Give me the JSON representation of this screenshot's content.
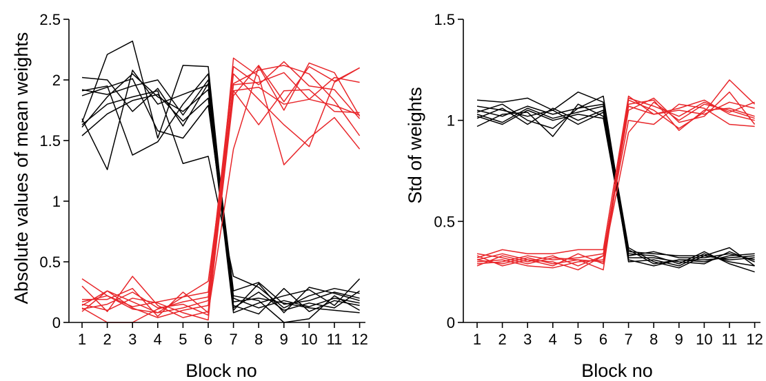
{
  "chart_data": [
    {
      "type": "line",
      "xlabel": "Block no",
      "ylabel": "Absolute values of mean weights",
      "x": [
        1,
        2,
        3,
        4,
        5,
        6,
        7,
        8,
        9,
        10,
        11,
        12
      ],
      "x_tick_labels": [
        "1",
        "2",
        "3",
        "4",
        "5",
        "6",
        "7",
        "8",
        "9",
        "10",
        "11",
        "12"
      ],
      "ylim": [
        0,
        2.5
      ],
      "y_ticks": [
        0,
        0.5,
        1,
        1.5,
        2,
        2.5
      ],
      "y_tick_labels": [
        "0",
        "0.5",
        "1",
        "1.5",
        "2",
        "2.5"
      ],
      "grid": false,
      "colors": {
        "high_then_low": "#000000",
        "low_then_high": "#e8262a"
      },
      "series": [
        {
          "color": "#000000",
          "values": [
            2.02,
            2.0,
            1.74,
            1.93,
            1.62,
            1.97,
            0.2,
            0.12,
            0.18,
            0.13,
            0.2,
            0.16
          ]
        },
        {
          "color": "#000000",
          "values": [
            1.65,
            2.21,
            2.32,
            1.52,
            2.12,
            2.11,
            0.12,
            0.25,
            0.1,
            0.16,
            0.12,
            0.26
          ]
        },
        {
          "color": "#000000",
          "values": [
            1.54,
            1.72,
            1.83,
            1.88,
            1.66,
            1.85,
            0.08,
            0.16,
            0.22,
            0.27,
            0.14,
            0.36
          ]
        },
        {
          "color": "#000000",
          "values": [
            1.68,
            1.26,
            2.08,
            1.8,
            1.88,
            1.96,
            0.26,
            0.33,
            0.15,
            0.18,
            0.25,
            0.2
          ]
        },
        {
          "color": "#000000",
          "values": [
            1.91,
            1.95,
            1.38,
            1.49,
            1.8,
            2.05,
            0.14,
            0.07,
            0.28,
            0.09,
            0.18,
            0.14
          ]
        },
        {
          "color": "#000000",
          "values": [
            1.87,
            1.94,
            2.01,
            1.58,
            1.52,
            1.79,
            0.22,
            0.18,
            0.0,
            0.03,
            0.22,
            0.1
          ]
        },
        {
          "color": "#000000",
          "values": [
            1.63,
            1.8,
            1.86,
            1.91,
            1.31,
            1.37,
            0.38,
            0.29,
            0.12,
            0.22,
            0.28,
            0.24
          ]
        },
        {
          "color": "#000000",
          "values": [
            1.92,
            1.88,
            1.95,
            2.0,
            1.71,
            2.0,
            0.17,
            0.2,
            0.16,
            0.12,
            0.1,
            0.08
          ]
        },
        {
          "color": "#000000",
          "values": [
            1.61,
            1.86,
            2.05,
            1.86,
            1.74,
            1.92,
            0.1,
            0.32,
            0.08,
            0.29,
            0.24,
            0.18
          ]
        },
        {
          "color": "#e8262a",
          "values": [
            0.36,
            0.22,
            0.11,
            0.08,
            0.21,
            0.34,
            1.91,
            1.94,
            1.8,
            1.84,
            1.79,
            1.71
          ]
        },
        {
          "color": "#e8262a",
          "values": [
            0.15,
            0.1,
            0.2,
            0.16,
            0.08,
            0.02,
            2.18,
            2.03,
            1.3,
            1.52,
            1.69,
            1.43
          ]
        },
        {
          "color": "#e8262a",
          "values": [
            0.19,
            0.19,
            0.28,
            0.05,
            0.25,
            0.08,
            1.43,
            2.11,
            1.75,
            2.14,
            2.06,
            1.7
          ]
        },
        {
          "color": "#e8262a",
          "values": [
            0.12,
            0.0,
            0.0,
            0.11,
            0.17,
            0.21,
            2.05,
            1.84,
            1.63,
            1.45,
            1.98,
            2.1
          ]
        },
        {
          "color": "#e8262a",
          "values": [
            0.3,
            0.09,
            0.38,
            0.14,
            0.04,
            0.09,
            1.91,
            1.63,
            1.91,
            1.92,
            1.74,
            1.73
          ]
        },
        {
          "color": "#e8262a",
          "values": [
            0.09,
            0.26,
            0.12,
            0.04,
            0.1,
            0.14,
            1.97,
            2.08,
            2.12,
            2.05,
            1.83,
            1.54
          ]
        },
        {
          "color": "#e8262a",
          "values": [
            0.17,
            0.22,
            0.13,
            0.17,
            0.21,
            0.25,
            2.11,
            1.96,
            2.15,
            1.95,
            1.92,
            1.68
          ]
        },
        {
          "color": "#e8262a",
          "values": [
            0.11,
            0.15,
            0.25,
            0.12,
            0.15,
            0.06,
            1.87,
            2.12,
            1.82,
            2.11,
            1.99,
            2.1
          ]
        },
        {
          "color": "#e8262a",
          "values": [
            0.14,
            0.26,
            0.17,
            0.08,
            0.12,
            0.18,
            1.96,
            1.98,
            2.06,
            1.84,
            2.02,
            1.98
          ]
        }
      ]
    },
    {
      "type": "line",
      "xlabel": "Block no",
      "ylabel": "Std of weights",
      "x": [
        1,
        2,
        3,
        4,
        5,
        6,
        7,
        8,
        9,
        10,
        11,
        12
      ],
      "x_tick_labels": [
        "1",
        "2",
        "3",
        "4",
        "5",
        "6",
        "7",
        "8",
        "9",
        "10",
        "11",
        "12"
      ],
      "ylim": [
        0,
        1.5
      ],
      "y_ticks": [
        0,
        0.5,
        1,
        1.5
      ],
      "y_tick_labels": [
        "0",
        "0.5",
        "1",
        "1.5"
      ],
      "grid": false,
      "colors": {
        "high_then_low": "#000000",
        "low_then_high": "#e8262a"
      },
      "series": [
        {
          "color": "#000000",
          "values": [
            1.1,
            1.09,
            1.11,
            1.05,
            1.14,
            1.09,
            0.37,
            0.3,
            0.27,
            0.33,
            0.37,
            0.28
          ]
        },
        {
          "color": "#000000",
          "values": [
            1.05,
            1.02,
            1.07,
            1.03,
            1.06,
            1.12,
            0.34,
            0.33,
            0.29,
            0.35,
            0.29,
            0.25
          ]
        },
        {
          "color": "#000000",
          "values": [
            1.01,
            1.06,
            0.98,
            1.06,
            1.0,
            1.05,
            0.31,
            0.28,
            0.31,
            0.3,
            0.33,
            0.34
          ]
        },
        {
          "color": "#000000",
          "values": [
            0.97,
            1.03,
            1.04,
            0.92,
            1.08,
            1.02,
            0.33,
            0.35,
            0.32,
            0.32,
            0.34,
            0.31
          ]
        },
        {
          "color": "#000000",
          "values": [
            1.03,
            0.99,
            1.06,
            1.01,
            1.04,
            1.07,
            0.3,
            0.31,
            0.28,
            0.34,
            0.3,
            0.28
          ]
        },
        {
          "color": "#000000",
          "values": [
            1.07,
            1.05,
            1.02,
            1.05,
            0.98,
            1.04,
            0.36,
            0.29,
            0.31,
            0.31,
            0.32,
            0.33
          ]
        },
        {
          "color": "#000000",
          "values": [
            1.02,
            0.98,
            1.05,
            1.0,
            1.03,
            1.01,
            0.32,
            0.32,
            0.3,
            0.29,
            0.35,
            0.3
          ]
        },
        {
          "color": "#000000",
          "values": [
            1.04,
            1.08,
            1.0,
            0.96,
            1.06,
            1.08,
            0.35,
            0.34,
            0.33,
            0.33,
            0.31,
            0.32
          ]
        },
        {
          "color": "#e8262a",
          "values": [
            0.31,
            0.29,
            0.32,
            0.29,
            0.31,
            0.26,
            1.1,
            1.05,
            0.96,
            1.04,
            1.2,
            1.08
          ]
        },
        {
          "color": "#e8262a",
          "values": [
            0.28,
            0.33,
            0.3,
            0.33,
            0.28,
            0.33,
            1.05,
            1.11,
            0.99,
            1.02,
            1.14,
            0.98
          ]
        },
        {
          "color": "#e8262a",
          "values": [
            0.32,
            0.36,
            0.34,
            0.34,
            0.36,
            0.36,
            1.12,
            1.03,
            1.06,
            1.1,
            1.03,
            1.0
          ]
        },
        {
          "color": "#e8262a",
          "values": [
            0.3,
            0.31,
            0.28,
            0.27,
            0.3,
            0.31,
            0.94,
            1.09,
            1.0,
            1.08,
            1.05,
            1.01
          ]
        },
        {
          "color": "#e8262a",
          "values": [
            0.33,
            0.28,
            0.31,
            0.3,
            0.26,
            0.33,
            1.07,
            1.03,
            1.05,
            1.03,
            1.09,
            1.06
          ]
        },
        {
          "color": "#e8262a",
          "values": [
            0.29,
            0.3,
            0.33,
            0.31,
            0.32,
            0.34,
            1.0,
            0.98,
            1.08,
            1.06,
            0.98,
            0.97
          ]
        },
        {
          "color": "#e8262a",
          "values": [
            0.34,
            0.32,
            0.29,
            0.32,
            0.31,
            0.3,
            1.11,
            1.07,
            1.02,
            1.09,
            1.04,
            1.09
          ]
        },
        {
          "color": "#e8262a",
          "values": [
            0.31,
            0.34,
            0.31,
            0.28,
            0.34,
            0.29,
            1.08,
            1.1,
            0.95,
            1.05,
            1.06,
            1.02
          ]
        }
      ]
    }
  ]
}
